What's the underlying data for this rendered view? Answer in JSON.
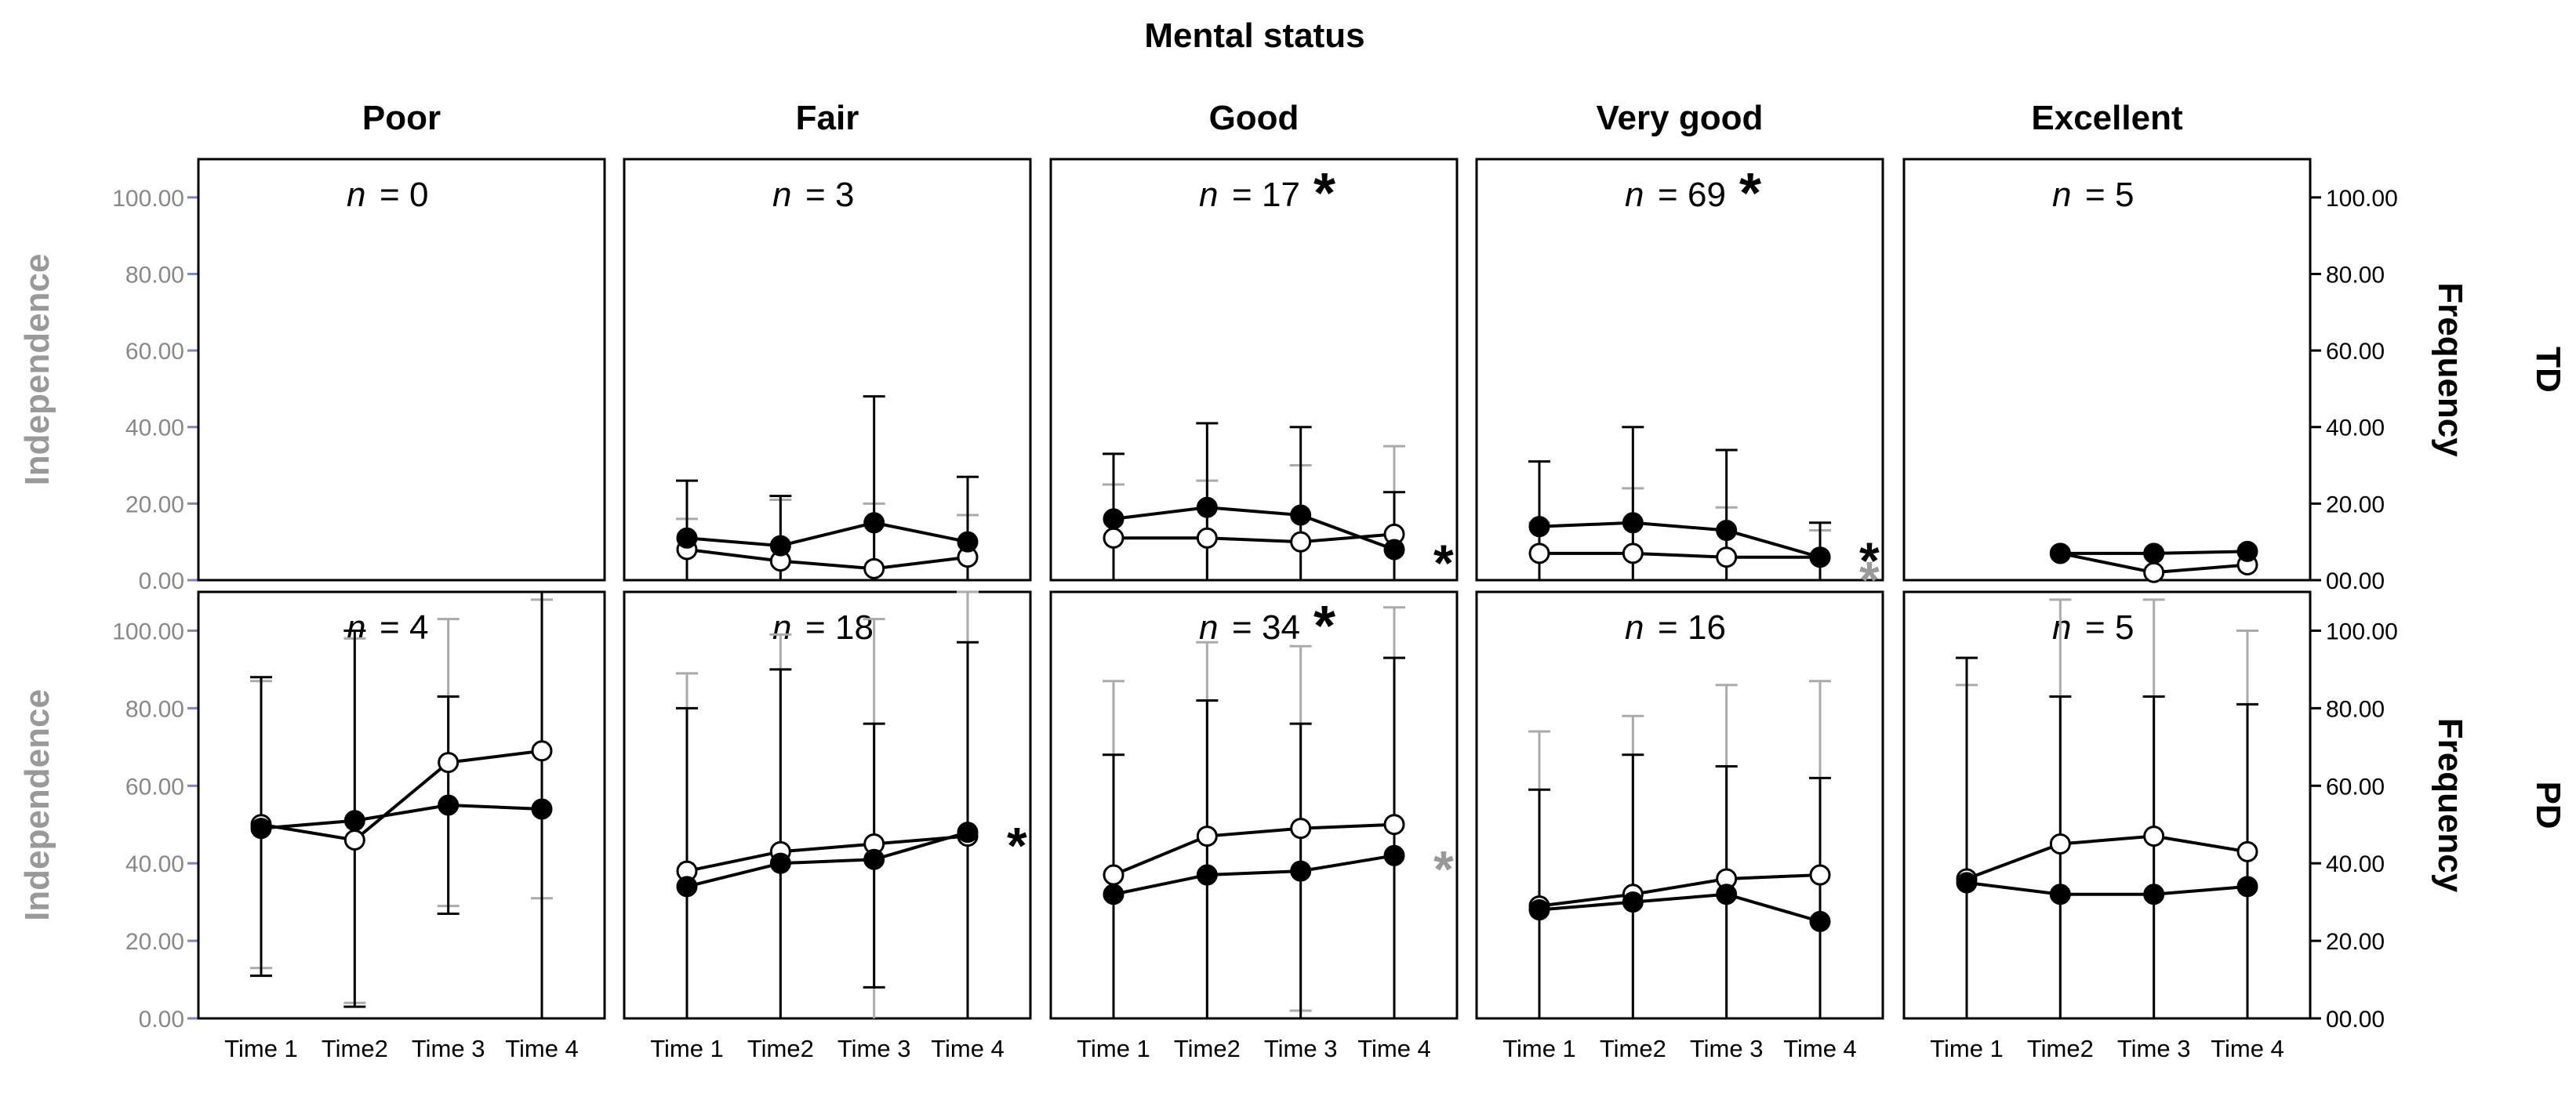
{
  "chart_data": {
    "type": "line",
    "title": "Mental status",
    "columns": [
      "Poor",
      "Fair",
      "Good",
      "Very good",
      "Excellent"
    ],
    "rows": [
      "TD",
      "PD"
    ],
    "x_categories": [
      "Time 1",
      "Time2",
      "Time 3",
      "Time 4"
    ],
    "left_axis_label": "Independence",
    "right_axis_label": "Frequency",
    "left_ticks": [
      "0.00",
      "20.00",
      "40.00",
      "60.00",
      "80.00",
      "100.00"
    ],
    "right_ticks": [
      "00.00",
      "20.00",
      "40.00",
      "60.00",
      "80.00",
      "100.00"
    ],
    "ylim": [
      0,
      110
    ],
    "series_names": [
      "Independence",
      "Frequency"
    ],
    "colors": {
      "independence": "#000000",
      "frequency_error": "#aaaaaa",
      "axis_label": "#999999",
      "tick_label": "#888888"
    },
    "n_prefix": "n",
    "n_eq": "= ",
    "sig_marker": "*",
    "panels": [
      {
        "row": "TD",
        "col": "Poor",
        "n": "0",
        "n_star": false,
        "series": []
      },
      {
        "row": "TD",
        "col": "Fair",
        "n": "3",
        "n_star": false,
        "series": [
          {
            "name": "Independence",
            "values": [
              11,
              9,
              15,
              10
            ],
            "err_low": [
              0,
              0,
              0,
              0
            ],
            "err_high": [
              26,
              22,
              48,
              27
            ]
          },
          {
            "name": "Frequency",
            "values": [
              8,
              5,
              3,
              6
            ],
            "err_low": [
              0,
              0,
              0,
              0
            ],
            "err_high": [
              16,
              21,
              20,
              17
            ]
          }
        ]
      },
      {
        "row": "TD",
        "col": "Good",
        "n": "17",
        "n_star": true,
        "end_star": "black",
        "series": [
          {
            "name": "Independence",
            "values": [
              16,
              19,
              17,
              8
            ],
            "err_low": [
              0,
              0,
              0,
              0
            ],
            "err_high": [
              33,
              41,
              40,
              23
            ]
          },
          {
            "name": "Frequency",
            "values": [
              11,
              11,
              10,
              12
            ],
            "err_low": [
              0,
              0,
              0,
              0
            ],
            "err_high": [
              25,
              26,
              30,
              35
            ]
          }
        ]
      },
      {
        "row": "TD",
        "col": "Very good",
        "n": "69",
        "n_star": true,
        "end_star_pair": true,
        "series": [
          {
            "name": "Independence",
            "values": [
              14,
              15,
              13,
              6
            ],
            "err_low": [
              0,
              0,
              0,
              0
            ],
            "err_high": [
              31,
              40,
              34,
              15
            ]
          },
          {
            "name": "Frequency",
            "values": [
              7,
              7,
              6,
              6
            ],
            "err_low": [
              0,
              0,
              0,
              0
            ],
            "err_high": [
              15,
              24,
              19,
              13
            ]
          }
        ]
      },
      {
        "row": "TD",
        "col": "Excellent",
        "n": "5",
        "n_star": false,
        "series": [
          {
            "name": "Independence",
            "values": [
              7,
              7,
              7.5
            ],
            "err_low": [
              7,
              7,
              7.5
            ],
            "err_high": [
              7,
              7,
              7.5
            ],
            "x_index": [
              1,
              2,
              3
            ]
          },
          {
            "name": "Frequency",
            "values": [
              7,
              2,
              4
            ],
            "err_low": [
              7,
              2,
              4
            ],
            "err_high": [
              7,
              2,
              4
            ],
            "x_index": [
              1,
              2,
              3
            ]
          }
        ]
      },
      {
        "row": "PD",
        "col": "Poor",
        "n": "4",
        "n_star": false,
        "series": [
          {
            "name": "Independence",
            "values": [
              49,
              51,
              55,
              54
            ],
            "err_low": [
              11,
              3,
              27,
              0
            ],
            "err_high": [
              88,
              100,
              83,
              110
            ]
          },
          {
            "name": "Frequency",
            "values": [
              50,
              46,
              66,
              69
            ],
            "err_low": [
              13,
              4,
              29,
              31
            ],
            "err_high": [
              87,
              98,
              103,
              108
            ]
          }
        ]
      },
      {
        "row": "PD",
        "col": "Fair",
        "n": "18",
        "n_star": false,
        "end_star": "black",
        "series": [
          {
            "name": "Independence",
            "values": [
              34,
              40,
              41,
              48
            ],
            "err_low": [
              0,
              0,
              8,
              0
            ],
            "err_high": [
              80,
              90,
              76,
              97
            ]
          },
          {
            "name": "Frequency",
            "values": [
              38,
              43,
              45,
              47
            ],
            "err_low": [
              0,
              0,
              0,
              0
            ],
            "err_high": [
              89,
              99,
              103,
              110
            ]
          }
        ]
      },
      {
        "row": "PD",
        "col": "Good",
        "n": "34",
        "n_star": true,
        "end_star": "gray",
        "series": [
          {
            "name": "Independence",
            "values": [
              32,
              37,
              38,
              42
            ],
            "err_low": [
              0,
              0,
              0,
              0
            ],
            "err_high": [
              68,
              82,
              76,
              93
            ]
          },
          {
            "name": "Frequency",
            "values": [
              37,
              47,
              49,
              50
            ],
            "err_low": [
              0,
              0,
              2,
              0
            ],
            "err_high": [
              87,
              97,
              96,
              106
            ]
          }
        ]
      },
      {
        "row": "PD",
        "col": "Very good",
        "n": "16",
        "n_star": false,
        "series": [
          {
            "name": "Independence",
            "values": [
              28,
              30,
              32,
              25
            ],
            "err_low": [
              0,
              0,
              0,
              0
            ],
            "err_high": [
              59,
              68,
              65,
              62
            ]
          },
          {
            "name": "Frequency",
            "values": [
              29,
              32,
              36,
              37
            ],
            "err_low": [
              0,
              0,
              0,
              0
            ],
            "err_high": [
              74,
              78,
              86,
              87
            ]
          }
        ]
      },
      {
        "row": "PD",
        "col": "Excellent",
        "n": "5",
        "n_star": false,
        "series": [
          {
            "name": "Independence",
            "values": [
              35,
              32,
              32,
              34
            ],
            "err_low": [
              0,
              0,
              0,
              0
            ],
            "err_high": [
              93,
              83,
              83,
              81
            ]
          },
          {
            "name": "Frequency",
            "values": [
              36,
              45,
              47,
              43
            ],
            "err_low": [
              0,
              0,
              0,
              0
            ],
            "err_high": [
              86,
              108,
              108,
              100
            ]
          }
        ]
      }
    ]
  }
}
